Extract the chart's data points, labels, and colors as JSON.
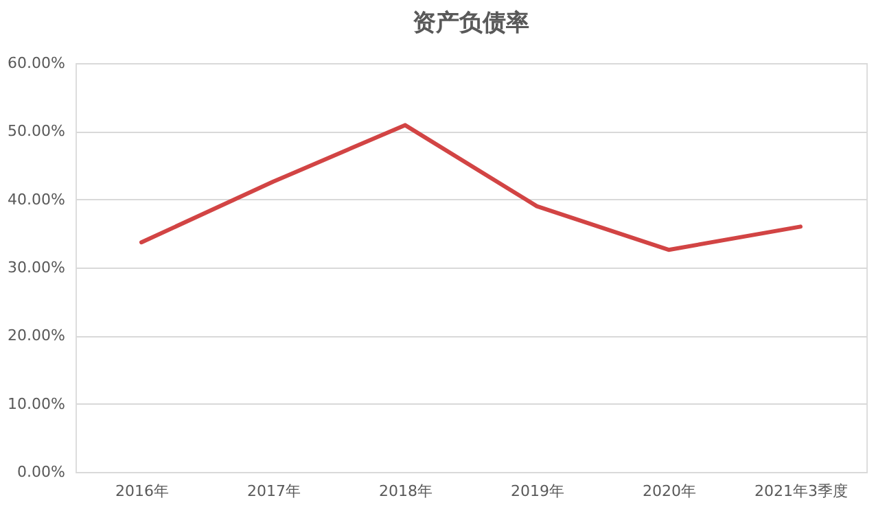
{
  "chart_data": {
    "type": "line",
    "title": "资产负债率",
    "categories": [
      "2016年",
      "2017年",
      "2018年",
      "2019年",
      "2020年",
      "2021年3季度"
    ],
    "series": [
      {
        "color": "#d24444",
        "values": [
          33.7,
          42.6,
          50.9,
          39.0,
          32.6,
          36.0
        ]
      }
    ],
    "ylim": [
      0,
      60
    ],
    "yticks": [
      {
        "value": 0,
        "label": "0.00%"
      },
      {
        "value": 10,
        "label": "10.00%"
      },
      {
        "value": 20,
        "label": "20.00%"
      },
      {
        "value": 30,
        "label": "30.00%"
      },
      {
        "value": 40,
        "label": "40.00%"
      },
      {
        "value": 50,
        "label": "50.00%"
      },
      {
        "value": 60,
        "label": "60.00%"
      }
    ],
    "grid": "y",
    "marker": "none",
    "line_style": "solid"
  }
}
